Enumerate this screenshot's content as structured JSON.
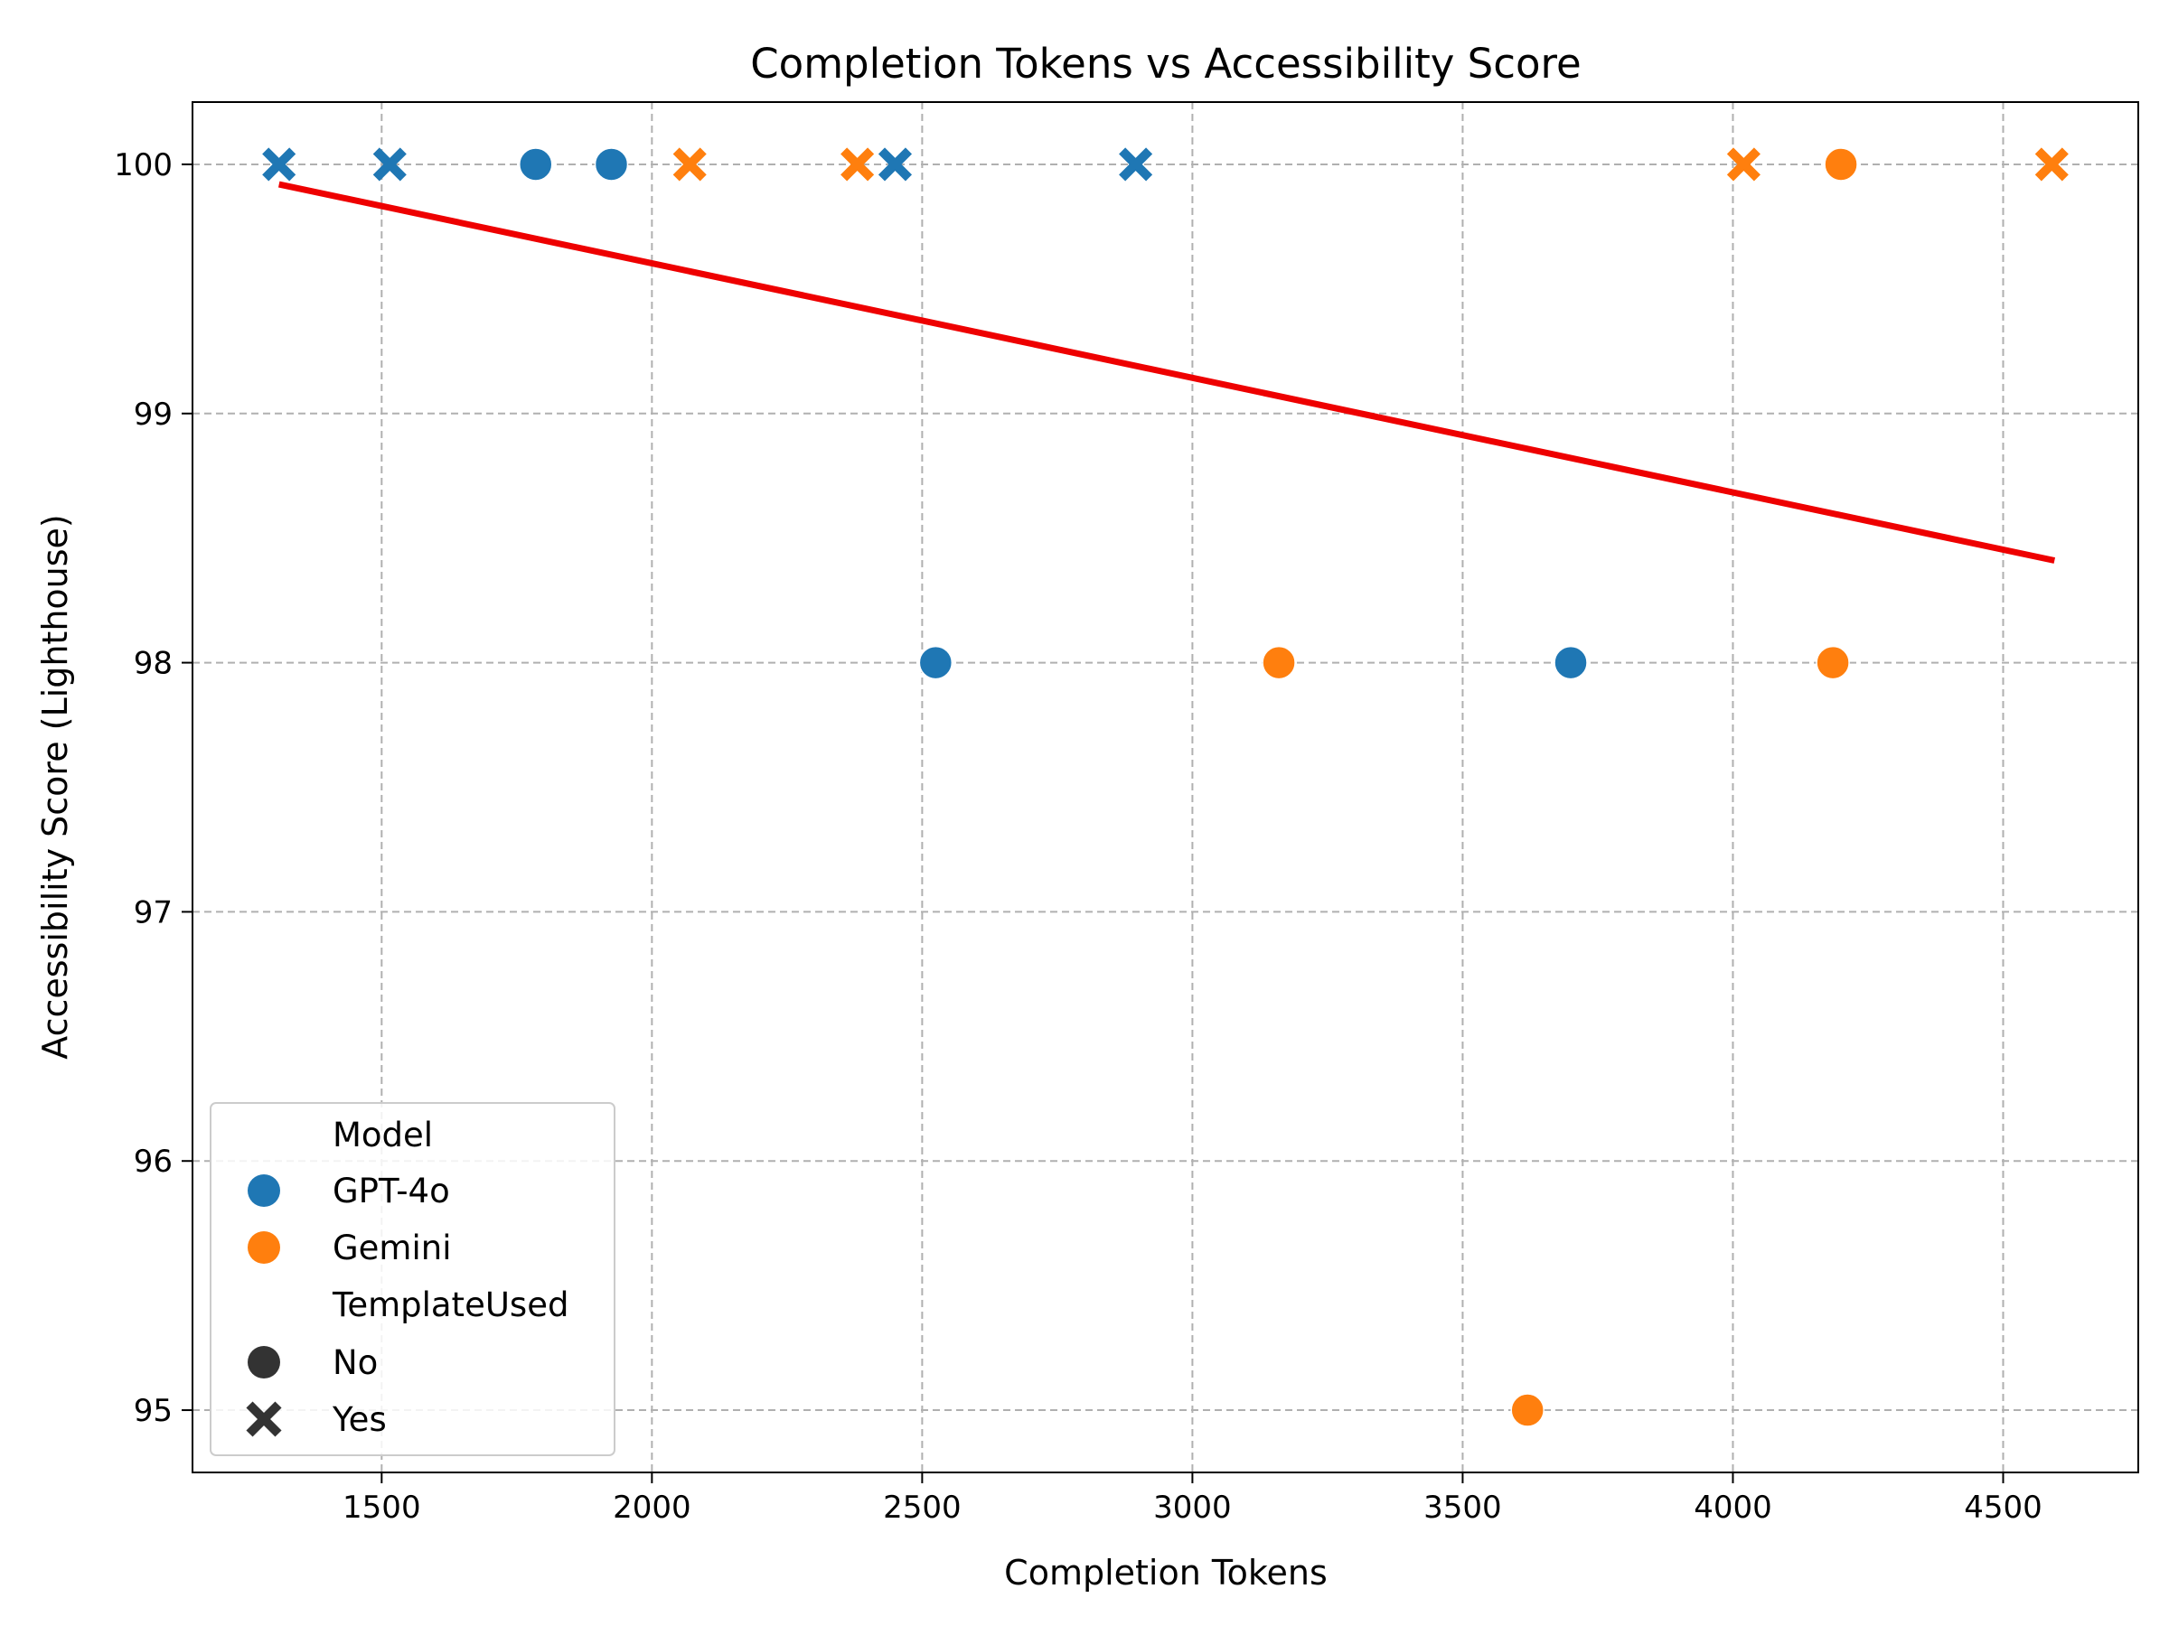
{
  "chart_data": {
    "type": "scatter",
    "title": "Completion Tokens vs Accessibility Score",
    "xlabel": "Completion Tokens",
    "ylabel": "Accessibility Score (Lighthouse)",
    "xlim": [
      1150,
      4750
    ],
    "ylim": [
      94.75,
      100.25
    ],
    "xticks": [
      1500,
      2000,
      2500,
      3000,
      3500,
      4000,
      4500
    ],
    "yticks": [
      95,
      96,
      97,
      98,
      99,
      100
    ],
    "grid": true,
    "legend_position": "bottom-left",
    "colors": {
      "GPT-4o": "#1f77b4",
      "Gemini": "#ff7f0e",
      "trend": "#ee0000",
      "marker_key": "#333333"
    },
    "legend": {
      "model_title": "Model",
      "models": [
        "GPT-4o",
        "Gemini"
      ],
      "template_title": "TemplateUsed",
      "templates": [
        {
          "label": "No",
          "marker": "circle"
        },
        {
          "label": "Yes",
          "marker": "x"
        }
      ]
    },
    "series": [
      {
        "name": "GPT-4o",
        "points": [
          {
            "x": 1310,
            "y": 100,
            "template": "Yes"
          },
          {
            "x": 1515,
            "y": 100,
            "template": "Yes"
          },
          {
            "x": 1785,
            "y": 100,
            "template": "No"
          },
          {
            "x": 1925,
            "y": 100,
            "template": "No"
          },
          {
            "x": 2450,
            "y": 100,
            "template": "Yes"
          },
          {
            "x": 2525,
            "y": 98,
            "template": "No"
          },
          {
            "x": 2895,
            "y": 100,
            "template": "Yes"
          },
          {
            "x": 3700,
            "y": 98,
            "template": "No"
          }
        ]
      },
      {
        "name": "Gemini",
        "points": [
          {
            "x": 2070,
            "y": 100,
            "template": "Yes"
          },
          {
            "x": 2380,
            "y": 100,
            "template": "Yes"
          },
          {
            "x": 3160,
            "y": 98,
            "template": "No"
          },
          {
            "x": 3620,
            "y": 95,
            "template": "No"
          },
          {
            "x": 4020,
            "y": 100,
            "template": "Yes"
          },
          {
            "x": 4185,
            "y": 98,
            "template": "No"
          },
          {
            "x": 4200,
            "y": 100,
            "template": "No"
          },
          {
            "x": 4590,
            "y": 100,
            "template": "Yes"
          }
        ]
      }
    ],
    "trendline": {
      "x": [
        1310,
        4595
      ],
      "y": [
        99.92,
        98.41
      ]
    }
  }
}
